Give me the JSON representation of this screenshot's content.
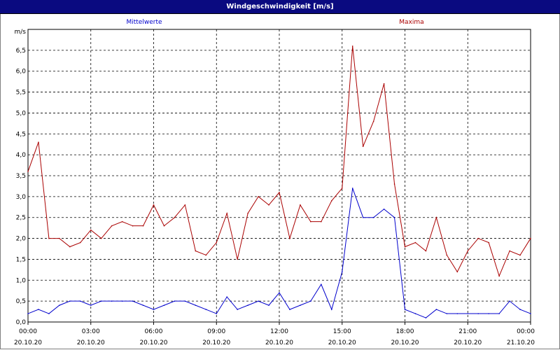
{
  "title": "Windgeschwindigkeit [m/s]",
  "colors": {
    "titlebar": "#0a0a80",
    "mean": "#0000cc",
    "max": "#aa0000",
    "grid": "#000000"
  },
  "chart_data": {
    "type": "line",
    "ylabel": "m/s",
    "ylim": [
      0,
      7
    ],
    "yticks": [
      "0,0",
      "0,5",
      "1,0",
      "1,5",
      "2,0",
      "2,5",
      "3,0",
      "3,5",
      "4,0",
      "4,5",
      "5,0",
      "5,5",
      "6,0",
      "6,5"
    ],
    "xticks": [
      {
        "time": "00:00",
        "date": "20.10.20"
      },
      {
        "time": "03:00",
        "date": "20.10.20"
      },
      {
        "time": "06:00",
        "date": "20.10.20"
      },
      {
        "time": "09:00",
        "date": "20.10.20"
      },
      {
        "time": "12:00",
        "date": "20.10.20"
      },
      {
        "time": "15:00",
        "date": "20.10.20"
      },
      {
        "time": "18:00",
        "date": "20.10.20"
      },
      {
        "time": "21:00",
        "date": "20.10.20"
      },
      {
        "time": "00:00",
        "date": "21.10.20"
      }
    ],
    "grid": true,
    "series": [
      {
        "name": "Mittelwerte",
        "color": "#0000cc",
        "x_hours": [
          0,
          0.5,
          1,
          1.5,
          2,
          2.5,
          3,
          3.5,
          4,
          4.5,
          5,
          5.5,
          6,
          6.5,
          7,
          7.5,
          8,
          8.5,
          9,
          9.5,
          10,
          10.5,
          11,
          11.5,
          12,
          12.5,
          13,
          13.5,
          14,
          14.5,
          15,
          15.5,
          16,
          16.5,
          17,
          17.5,
          18,
          18.5,
          19,
          19.5,
          20,
          20.5,
          21,
          21.5,
          22,
          22.5,
          23,
          23.5,
          24
        ],
        "values": [
          0.2,
          0.3,
          0.2,
          0.4,
          0.5,
          0.5,
          0.4,
          0.5,
          0.5,
          0.5,
          0.5,
          0.4,
          0.3,
          0.4,
          0.5,
          0.5,
          0.4,
          0.3,
          0.2,
          0.6,
          0.3,
          0.4,
          0.5,
          0.4,
          0.7,
          0.3,
          0.4,
          0.5,
          0.9,
          0.3,
          1.2,
          3.2,
          2.5,
          2.5,
          2.7,
          2.5,
          0.3,
          0.2,
          0.1,
          0.3,
          0.2,
          0.2,
          0.2,
          0.2,
          0.2,
          0.2,
          0.5,
          0.3,
          0.2
        ]
      },
      {
        "name": "Maxima",
        "color": "#aa0000",
        "x_hours": [
          0,
          0.5,
          1,
          1.5,
          2,
          2.5,
          3,
          3.5,
          4,
          4.5,
          5,
          5.5,
          6,
          6.5,
          7,
          7.5,
          8,
          8.5,
          9,
          9.5,
          10,
          10.5,
          11,
          11.5,
          12,
          12.5,
          13,
          13.5,
          14,
          14.5,
          15,
          15.5,
          16,
          16.5,
          17,
          17.5,
          18,
          18.5,
          19,
          19.5,
          20,
          20.5,
          21,
          21.5,
          22,
          22.5,
          23,
          23.5,
          24
        ],
        "values": [
          3.6,
          4.3,
          2.0,
          2.0,
          1.8,
          1.9,
          2.2,
          2.0,
          2.3,
          2.4,
          2.3,
          2.3,
          2.8,
          2.3,
          2.5,
          2.8,
          1.7,
          1.6,
          1.9,
          2.6,
          1.5,
          2.6,
          3.0,
          2.8,
          3.1,
          2.0,
          2.8,
          2.4,
          2.4,
          2.9,
          3.2,
          6.6,
          4.2,
          4.8,
          5.7,
          3.3,
          1.8,
          1.9,
          1.7,
          2.5,
          1.6,
          1.2,
          1.7,
          2.0,
          1.9,
          1.1,
          1.7,
          1.6,
          2.0
        ]
      }
    ]
  }
}
